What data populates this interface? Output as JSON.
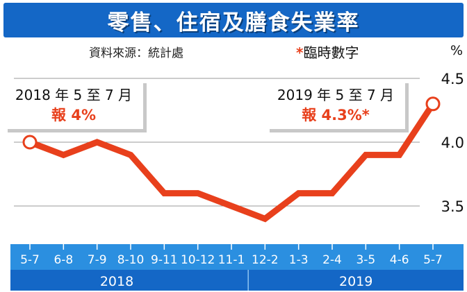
{
  "title": "零售、住宿及膳食失業率",
  "source": "資料來源：統計處",
  "provisional_mark": "*",
  "provisional_label": "臨時數字",
  "unit": "%",
  "annotations": {
    "left": {
      "period": "2018 年 5 至 7 月",
      "value": "報 4%"
    },
    "right": {
      "period": "2019 年 5 至 7 月",
      "value": "報 4.3%*"
    }
  },
  "chart_data": {
    "type": "line",
    "title": "零售、住宿及膳食失業率",
    "ylabel": "%",
    "ylim": [
      3.2,
      4.6
    ],
    "yticks": [
      3.5,
      4.0,
      4.5
    ],
    "ytick_labels": [
      "3.5",
      "4.0",
      "4.5"
    ],
    "grid": true,
    "categories": [
      "5-7",
      "6-8",
      "7-9",
      "8-10",
      "9-11",
      "10-12",
      "11-1",
      "12-2",
      "1-3",
      "2-4",
      "3-5",
      "4-6",
      "5-7"
    ],
    "year_groups": [
      {
        "label": "2018",
        "start": 0,
        "end": 6
      },
      {
        "label": "2019",
        "start": 7,
        "end": 12
      }
    ],
    "series": [
      {
        "values": [
          4.0,
          3.9,
          4.0,
          3.9,
          3.6,
          3.6,
          3.5,
          3.4,
          3.6,
          3.6,
          3.9,
          3.9,
          4.3
        ]
      }
    ],
    "colors": {
      "line": "#e8401c",
      "axis_band": "#2b8fe0",
      "year_band": "#1467c6",
      "grid": "#999999"
    }
  }
}
